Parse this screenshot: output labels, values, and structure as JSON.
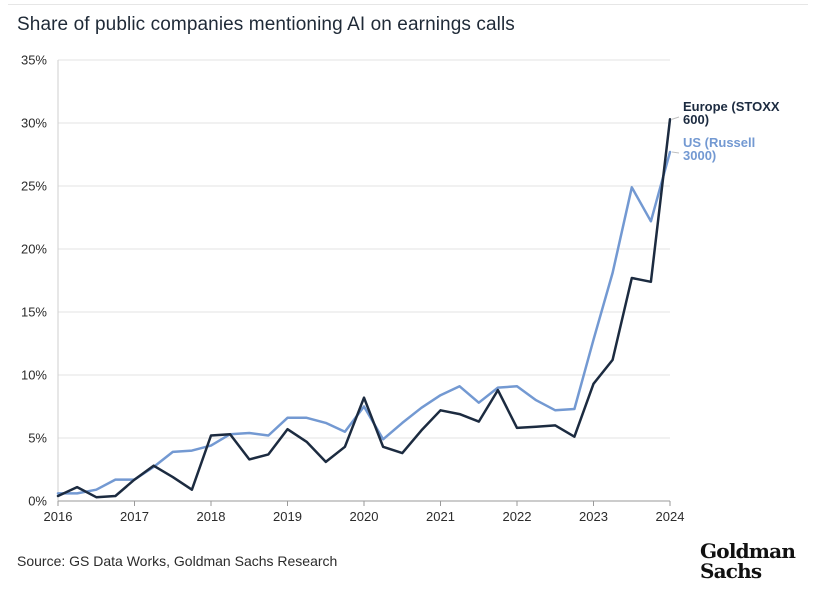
{
  "chart_data": {
    "type": "line",
    "title": "Share of public companies mentioning AI on earnings calls",
    "source": "Source: GS Data Works, Goldman Sachs Research",
    "x_tick_labels": [
      "2016",
      "2017",
      "2018",
      "2019",
      "2020",
      "2021",
      "2022",
      "2023",
      "2024"
    ],
    "y_tick_labels": [
      "0%",
      "5%",
      "10%",
      "15%",
      "20%",
      "25%",
      "30%",
      "35%"
    ],
    "y_ticks": [
      0,
      5,
      10,
      15,
      20,
      25,
      30,
      35
    ],
    "xlim": [
      2016,
      2024
    ],
    "ylim": [
      0,
      35
    ],
    "ylabel": "",
    "xlabel": "",
    "grid": true,
    "series": [
      {
        "name": "Europe (STOXX 600)",
        "legend_lines": [
          "Europe (STOXX",
          "600)"
        ],
        "color": "#1c2b40",
        "x": [
          2016.0,
          2016.25,
          2016.5,
          2016.75,
          2017.0,
          2017.25,
          2017.5,
          2017.75,
          2018.0,
          2018.25,
          2018.5,
          2018.75,
          2019.0,
          2019.25,
          2019.5,
          2019.75,
          2020.0,
          2020.25,
          2020.5,
          2020.75,
          2021.0,
          2021.25,
          2021.5,
          2021.75,
          2022.0,
          2022.25,
          2022.5,
          2022.75,
          2023.0,
          2023.25,
          2023.5,
          2023.75,
          2024.0
        ],
        "y": [
          0.4,
          1.1,
          0.3,
          0.4,
          1.7,
          2.8,
          1.9,
          0.9,
          5.2,
          5.3,
          3.3,
          3.7,
          5.7,
          4.7,
          3.1,
          4.3,
          8.2,
          4.3,
          3.8,
          5.6,
          7.2,
          6.9,
          6.3,
          8.8,
          5.8,
          5.9,
          6.0,
          5.1,
          9.3,
          11.2,
          17.7,
          17.4,
          30.3
        ]
      },
      {
        "name": "US (Russell 3000)",
        "legend_lines": [
          "US (Russell",
          "3000)"
        ],
        "color": "#7399d2",
        "x": [
          2016.0,
          2016.25,
          2016.5,
          2016.75,
          2017.0,
          2017.25,
          2017.5,
          2017.75,
          2018.0,
          2018.25,
          2018.5,
          2018.75,
          2019.0,
          2019.25,
          2019.5,
          2019.75,
          2020.0,
          2020.25,
          2020.5,
          2020.75,
          2021.0,
          2021.25,
          2021.5,
          2021.75,
          2022.0,
          2022.25,
          2022.5,
          2022.75,
          2023.0,
          2023.25,
          2023.5,
          2023.75,
          2024.0
        ],
        "y": [
          0.6,
          0.6,
          0.9,
          1.7,
          1.7,
          2.7,
          3.9,
          4.0,
          4.4,
          5.3,
          5.4,
          5.2,
          6.6,
          6.6,
          6.2,
          5.5,
          7.5,
          4.9,
          6.2,
          7.4,
          8.4,
          9.1,
          7.8,
          9.0,
          9.1,
          8.0,
          7.2,
          7.3,
          12.8,
          18.1,
          24.9,
          22.2,
          27.7
        ]
      }
    ]
  },
  "logo": {
    "line1": "Goldman",
    "line2": "Sachs"
  }
}
